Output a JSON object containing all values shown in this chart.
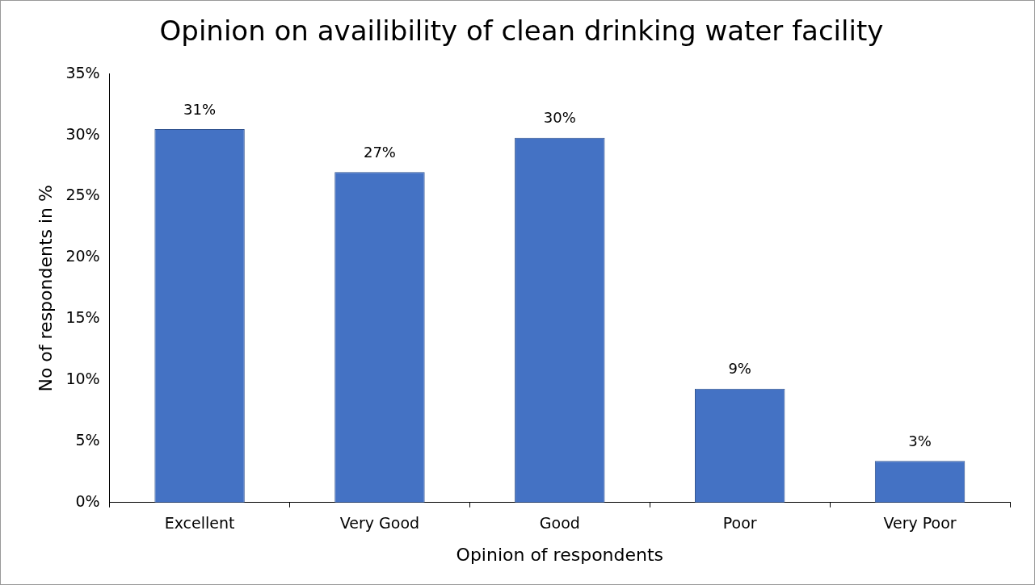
{
  "chart_data": {
    "type": "bar",
    "title": "Opinion on availibility of clean drinking water facility",
    "xlabel": "Opinion of respondents",
    "ylabel": "No of respondents in %",
    "categories": [
      "Excellent",
      "Very Good",
      "Good",
      "Poor",
      "Very Poor"
    ],
    "values": [
      30.5,
      27,
      29.8,
      9.3,
      3.4
    ],
    "value_labels": [
      "31%",
      "27%",
      "30%",
      "9%",
      "3%"
    ],
    "color": "#4472c4",
    "ylim": [
      0,
      35
    ],
    "yticks": [
      {
        "value": 0,
        "label": "0%"
      },
      {
        "value": 5,
        "label": "5%"
      },
      {
        "value": 10,
        "label": "10%"
      },
      {
        "value": 15,
        "label": "15%"
      },
      {
        "value": 20,
        "label": "20%"
      },
      {
        "value": 25,
        "label": "25%"
      },
      {
        "value": 30,
        "label": "30%"
      },
      {
        "value": 35,
        "label": "35%"
      }
    ],
    "grid": false,
    "legend": false
  }
}
